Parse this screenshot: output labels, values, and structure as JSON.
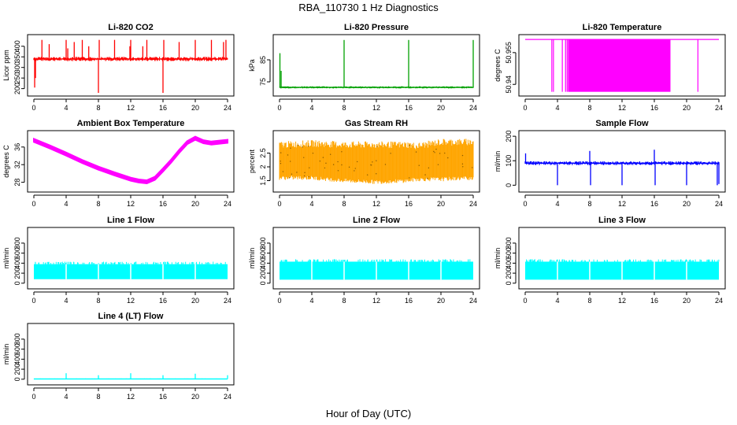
{
  "figure": {
    "title": "RBA_110730  1 Hz Diagnostics",
    "xlabel": "Hour of Day (UTC)"
  },
  "chart_data": [
    {
      "type": "line",
      "title": "Li-820 CO2",
      "ylabel": "Licor ppm",
      "color": "#ff0000",
      "xlim": [
        0,
        24
      ],
      "ylim": [
        180,
        440
      ],
      "yticks": [
        200,
        250,
        300,
        350,
        400
      ],
      "xticks": [
        0,
        4,
        8,
        12,
        16,
        20,
        24
      ],
      "series": [
        {
          "baseline": 340,
          "band": [
            330,
            350
          ],
          "spikes": [
            [
              0.1,
              205
            ],
            [
              0.2,
              250
            ],
            [
              1.0,
              430
            ],
            [
              1.9,
              410
            ],
            [
              4.0,
              430
            ],
            [
              4.2,
              390
            ],
            [
              5.0,
              420
            ],
            [
              6.0,
              430
            ],
            [
              6.8,
              400
            ],
            [
              8.0,
              180
            ],
            [
              8.1,
              430
            ],
            [
              10.0,
              430
            ],
            [
              11.9,
              400
            ],
            [
              12.0,
              430
            ],
            [
              13.5,
              400
            ],
            [
              14.0,
              430
            ],
            [
              16.0,
              180
            ],
            [
              16.1,
              430
            ],
            [
              18.0,
              420
            ],
            [
              20.0,
              430
            ],
            [
              22.0,
              430
            ],
            [
              23.5,
              420
            ],
            [
              23.8,
              430
            ]
          ]
        }
      ]
    },
    {
      "type": "line",
      "title": "Li-820 Pressure",
      "ylabel": "kPa",
      "color": "#00a000",
      "xlim": [
        0,
        24
      ],
      "ylim": [
        70,
        95
      ],
      "yticks": [
        75,
        85
      ],
      "xticks": [
        0,
        4,
        8,
        12,
        16,
        20,
        24
      ],
      "series": [
        {
          "baseline": 72.5,
          "band": [
            72,
            73
          ],
          "spikes": [
            [
              0.05,
              88
            ],
            [
              0.2,
              80
            ],
            [
              8.0,
              94
            ],
            [
              16.0,
              94
            ],
            [
              24.0,
              94
            ]
          ]
        }
      ]
    },
    {
      "type": "area",
      "title": "Li-820 Temperature",
      "ylabel": "degrees C",
      "color": "#ff00ff",
      "xlim": [
        0,
        24
      ],
      "ylim": [
        50.936,
        50.962
      ],
      "yticks": [
        50.94,
        50.955
      ],
      "xticks": [
        0,
        4,
        8,
        12,
        16,
        20,
        24
      ],
      "series": [
        {
          "high": 50.9612,
          "low": 50.9365,
          "filled_range": [
            5.3,
            18.0
          ],
          "dips": [
            3.3,
            3.5,
            4.6,
            5.0,
            5.2,
            21.4
          ]
        }
      ]
    },
    {
      "type": "line",
      "title": "Ambient Box Temperature",
      "ylabel": "degrees C",
      "color": "#ff00ff",
      "xlim": [
        0,
        24
      ],
      "ylim": [
        26.5,
        39
      ],
      "yticks": [
        28,
        32,
        36
      ],
      "xticks": [
        0,
        4,
        8,
        12,
        16,
        20,
        24
      ],
      "series": [
        {
          "x": [
            0,
            2,
            4,
            6,
            8,
            10,
            12,
            13,
            14,
            15,
            16,
            17,
            18,
            19,
            20,
            21,
            22,
            23,
            24
          ],
          "y": [
            37.5,
            36,
            34.4,
            32.7,
            31.2,
            29.9,
            28.7,
            28.3,
            28.1,
            28.9,
            30.8,
            32.8,
            35.0,
            37.0,
            38.0,
            37.2,
            36.9,
            37.1,
            37.3
          ],
          "band": 0.7
        }
      ]
    },
    {
      "type": "area",
      "title": "Gas Stream RH",
      "ylabel": "percent",
      "color": "#ffa500",
      "xlim": [
        0,
        24
      ],
      "ylim": [
        1.2,
        3.2
      ],
      "yticks": [
        1.5,
        2,
        2.5
      ],
      "xticks": [
        0,
        4,
        8,
        12,
        16,
        20,
        24
      ],
      "series": [
        {
          "x": [
            0,
            4,
            8,
            12,
            16,
            17,
            20,
            24
          ],
          "upper": [
            2.8,
            2.85,
            2.8,
            2.8,
            2.8,
            2.75,
            2.9,
            2.9
          ],
          "lower": [
            1.6,
            1.6,
            1.5,
            1.45,
            1.5,
            1.55,
            1.55,
            1.6
          ]
        }
      ]
    },
    {
      "type": "line",
      "title": "Sample Flow",
      "ylabel": "ml/min",
      "color": "#0000ff",
      "xlim": [
        0,
        24
      ],
      "ylim": [
        -15,
        210
      ],
      "yticks": [
        0,
        100,
        200
      ],
      "xticks": [
        0,
        4,
        8,
        12,
        16,
        20,
        24
      ],
      "series": [
        {
          "baseline": 90,
          "band": [
            82,
            98
          ],
          "spikes": [
            [
              0.05,
              130
            ],
            [
              4.0,
              0
            ],
            [
              8.0,
              140
            ],
            [
              8.1,
              0
            ],
            [
              12.0,
              0
            ],
            [
              16.0,
              145
            ],
            [
              16.1,
              0
            ],
            [
              20.0,
              0
            ],
            [
              23.8,
              0
            ],
            [
              24.0,
              5
            ]
          ]
        }
      ]
    },
    {
      "type": "area",
      "title": "Line 1 Flow",
      "ylabel": "ml/min",
      "color": "#00ffff",
      "xlim": [
        0,
        24
      ],
      "ylim": [
        -50,
        1050
      ],
      "yticks": [
        0,
        200,
        400,
        600,
        800
      ],
      "xticks": [
        0,
        4,
        8,
        12,
        16,
        20,
        24
      ],
      "series": [
        {
          "high": 380,
          "low": 80,
          "x_end": 24,
          "gaps": [
            4.0,
            8.0,
            12.0,
            16.0,
            20.0
          ]
        }
      ]
    },
    {
      "type": "area",
      "title": "Line 2 Flow",
      "ylabel": "ml/min",
      "color": "#00ffff",
      "xlim": [
        0,
        24
      ],
      "ylim": [
        -50,
        1050
      ],
      "yticks": [
        0,
        200,
        400,
        600,
        800
      ],
      "xticks": [
        0,
        4,
        8,
        12,
        16,
        20,
        24
      ],
      "series": [
        {
          "high": 430,
          "low": 70,
          "x_end": 24,
          "gaps": [
            4.0,
            8.0,
            12.0,
            16.0,
            20.0
          ]
        }
      ]
    },
    {
      "type": "area",
      "title": "Line 3 Flow",
      "ylabel": "ml/min",
      "color": "#00ffff",
      "xlim": [
        0,
        24
      ],
      "ylim": [
        -50,
        1050
      ],
      "yticks": [
        0,
        200,
        400,
        600,
        800
      ],
      "xticks": [
        0,
        4,
        8,
        12,
        16,
        20,
        24
      ],
      "series": [
        {
          "high": 430,
          "low": 70,
          "x_end": 24,
          "gaps": [
            4.0,
            8.0,
            12.0,
            16.0,
            20.0
          ]
        }
      ]
    },
    {
      "type": "line",
      "title": "Line 4 (LT) Flow",
      "ylabel": "ml/min",
      "color": "#00ffff",
      "xlim": [
        0,
        24
      ],
      "ylim": [
        -50,
        1050
      ],
      "yticks": [
        0,
        200,
        400,
        600,
        800
      ],
      "xticks": [
        0,
        4,
        8,
        12,
        16,
        20,
        24
      ],
      "series": [
        {
          "baseline": 5,
          "band": [
            0,
            15
          ],
          "spikes": [
            [
              4.0,
              120
            ],
            [
              8.0,
              80
            ],
            [
              12.0,
              120
            ],
            [
              16.0,
              80
            ],
            [
              20.0,
              110
            ],
            [
              24.0,
              80
            ]
          ]
        }
      ]
    }
  ]
}
